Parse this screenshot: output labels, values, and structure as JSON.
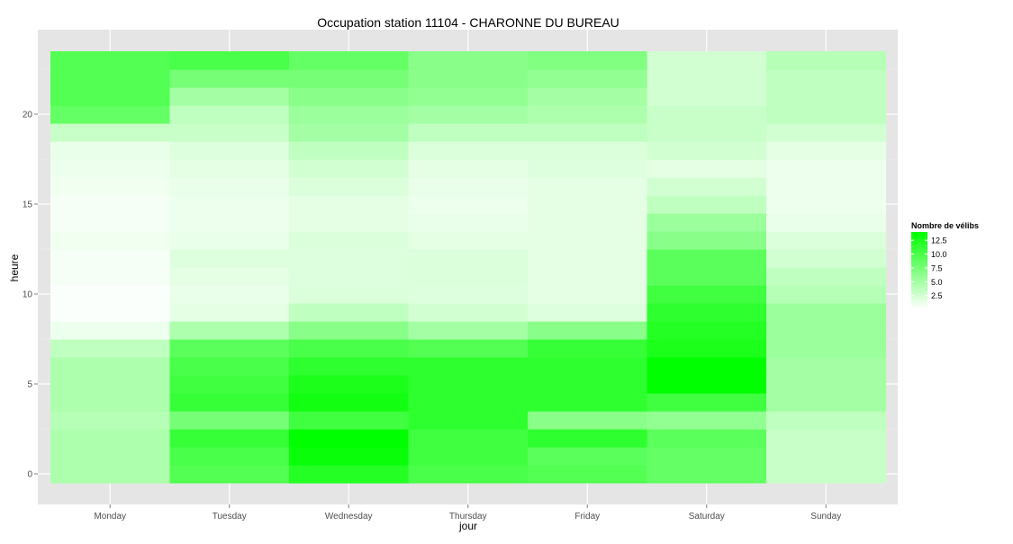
{
  "chart_data": {
    "type": "heatmap",
    "title": "Occupation station 11104 - CHARONNE DU BUREAU",
    "xlabel": "jour",
    "ylabel": "heure",
    "x_categories": [
      "Monday",
      "Tuesday",
      "Wednesday",
      "Thursday",
      "Friday",
      "Saturday",
      "Sunday"
    ],
    "y_hours": [
      0,
      1,
      2,
      3,
      4,
      5,
      6,
      7,
      8,
      9,
      10,
      11,
      12,
      13,
      14,
      15,
      16,
      17,
      18,
      19,
      20,
      21,
      22,
      23
    ],
    "y_ticks": [
      0,
      5,
      10,
      15,
      20
    ],
    "y_tick_labels": [
      "0",
      "5",
      "10",
      "15",
      "20"
    ],
    "ylim": [
      -0.5,
      23.5
    ],
    "values": [
      [
        4.5,
        9.5,
        12.0,
        10.0,
        9.5,
        8.5,
        3.0
      ],
      [
        4.5,
        10.0,
        13.5,
        10.5,
        9.0,
        8.5,
        3.0
      ],
      [
        4.5,
        11.0,
        14.0,
        10.5,
        11.5,
        9.0,
        3.0
      ],
      [
        4.0,
        7.5,
        10.5,
        11.5,
        6.5,
        6.0,
        3.5
      ],
      [
        4.5,
        11.0,
        13.0,
        11.5,
        11.5,
        10.5,
        5.0
      ],
      [
        4.5,
        10.5,
        12.5,
        11.5,
        11.5,
        14.0,
        5.0
      ],
      [
        4.5,
        10.0,
        11.5,
        11.5,
        11.5,
        14.0,
        5.0
      ],
      [
        3.5,
        9.0,
        10.0,
        9.5,
        11.0,
        12.5,
        5.5
      ],
      [
        1.0,
        4.5,
        6.5,
        5.0,
        6.5,
        12.0,
        5.5
      ],
      [
        0.2,
        1.5,
        3.5,
        2.5,
        1.8,
        11.5,
        5.5
      ],
      [
        0.2,
        1.2,
        2.0,
        1.8,
        1.5,
        10.5,
        4.0
      ],
      [
        0.5,
        1.5,
        1.8,
        2.0,
        1.5,
        9.0,
        3.5
      ],
      [
        0.5,
        1.8,
        1.8,
        2.0,
        1.5,
        9.0,
        2.5
      ],
      [
        0.8,
        1.2,
        2.0,
        1.5,
        1.5,
        6.5,
        2.0
      ],
      [
        0.5,
        1.0,
        1.5,
        1.2,
        1.5,
        5.5,
        1.2
      ],
      [
        0.5,
        1.0,
        1.5,
        1.0,
        1.5,
        3.5,
        1.0
      ],
      [
        0.8,
        1.2,
        2.0,
        1.2,
        1.5,
        2.5,
        1.0
      ],
      [
        1.0,
        1.5,
        2.5,
        1.5,
        1.8,
        1.5,
        1.0
      ],
      [
        1.2,
        1.8,
        3.5,
        2.0,
        2.0,
        2.5,
        1.5
      ],
      [
        3.0,
        3.0,
        5.0,
        3.5,
        3.5,
        3.0,
        2.5
      ],
      [
        8.5,
        3.5,
        5.5,
        5.0,
        4.5,
        3.0,
        3.5
      ],
      [
        9.5,
        5.0,
        6.5,
        6.0,
        5.0,
        2.5,
        3.5
      ],
      [
        9.5,
        7.5,
        7.5,
        6.5,
        6.0,
        2.5,
        3.5
      ],
      [
        9.5,
        10.0,
        8.5,
        6.5,
        7.0,
        2.5,
        4.0
      ]
    ],
    "legend": {
      "title": "Nombre de vélibs",
      "position": "right",
      "labels": [
        "12.5",
        "10.0",
        "7.5",
        "5.0",
        "2.5"
      ],
      "breaks": [
        12.5,
        10.0,
        7.5,
        5.0,
        2.5
      ],
      "range": [
        0,
        14
      ],
      "low_color": "#ffffff",
      "high_color": "#00ff00"
    },
    "grid": true,
    "panel_background": "#e5e5e5",
    "gridline_color": "#ffffff",
    "axis_text_color": "#4d4d4d"
  }
}
